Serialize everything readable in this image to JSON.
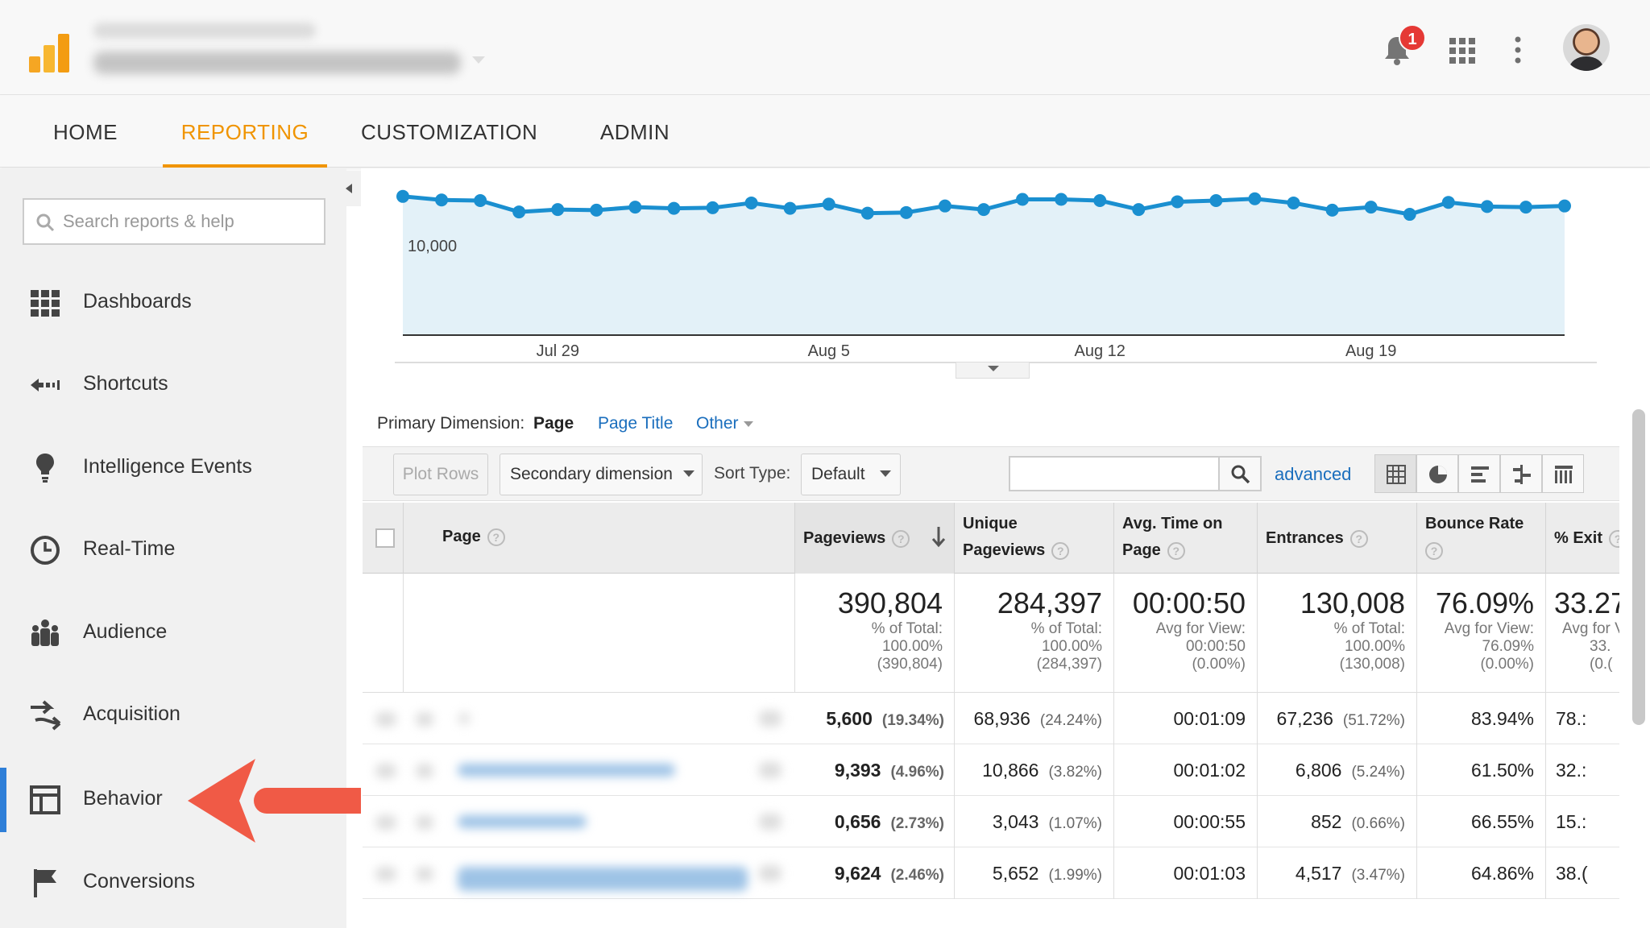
{
  "header": {
    "notifications_count": "1",
    "icons": [
      "notification-bell-icon",
      "apps-grid-icon",
      "more-vert-icon"
    ]
  },
  "nav": {
    "tabs": [
      {
        "label": "HOME",
        "active": false
      },
      {
        "label": "REPORTING",
        "active": true
      },
      {
        "label": "CUSTOMIZATION",
        "active": false
      },
      {
        "label": "ADMIN",
        "active": false
      }
    ],
    "accent_color": "#f09400"
  },
  "sidebar": {
    "search_placeholder": "Search reports & help",
    "items": [
      {
        "label": "Dashboards",
        "icon": "dashboards-icon"
      },
      {
        "label": "Shortcuts",
        "icon": "shortcuts-icon"
      },
      {
        "label": "Intelligence Events",
        "icon": "lightbulb-icon"
      },
      {
        "label": "Real-Time",
        "icon": "clock-icon"
      },
      {
        "label": "Audience",
        "icon": "people-icon"
      },
      {
        "label": "Acquisition",
        "icon": "acquisition-arrows-icon"
      },
      {
        "label": "Behavior",
        "icon": "behavior-layout-icon",
        "active": true
      },
      {
        "label": "Conversions",
        "icon": "flag-icon"
      }
    ],
    "active_color": "#2f7fd8",
    "arrow_color": "#f05a46"
  },
  "chart_data": {
    "type": "area",
    "ytick_label": "10,000",
    "xtick_labels": [
      "Jul 29",
      "Aug 5",
      "Aug 12",
      "Aug 19"
    ],
    "series_color": "#1a8fd0",
    "fill_color": "#e3f1f8",
    "values": [
      12750,
      12450,
      12400,
      11450,
      11650,
      11600,
      11850,
      11750,
      11800,
      12200,
      11750,
      12100,
      11350,
      11400,
      11950,
      11650,
      12500,
      12500,
      12400,
      11650,
      12300,
      12400,
      12550,
      12200,
      11600,
      11850,
      11250,
      12250,
      11900,
      11850,
      11950
    ]
  },
  "primary_dimension": {
    "label": "Primary Dimension:",
    "options": [
      "Page",
      "Page Title",
      "Other"
    ]
  },
  "toolbar": {
    "plot_rows": "Plot Rows",
    "secondary_dimension": "Secondary dimension",
    "sort_type_label": "Sort Type:",
    "sort_type_value": "Default",
    "advanced": "advanced"
  },
  "table": {
    "headers": {
      "page": "Page",
      "pageviews": "Pageviews",
      "unique1": "Unique",
      "unique2": "Pageviews",
      "avgtime1": "Avg. Time on",
      "avgtime2": "Page",
      "entrances": "Entrances",
      "bounce": "Bounce Rate",
      "exit": "% Exit"
    },
    "totals": {
      "pageviews": {
        "value": "390,804",
        "l1": "% of Total:",
        "l2": "100.00%",
        "l3": "(390,804)"
      },
      "unique": {
        "value": "284,397",
        "l1": "% of Total:",
        "l2": "100.00%",
        "l3": "(284,397)"
      },
      "avgtime": {
        "value": "00:00:50",
        "l1": "Avg for View:",
        "l2": "00:00:50",
        "l3": "(0.00%)"
      },
      "entrances": {
        "value": "130,008",
        "l1": "% of Total:",
        "l2": "100.00%",
        "l3": "(130,008)"
      },
      "bounce": {
        "value": "76.09%",
        "l1": "Avg for View:",
        "l2": "76.09%",
        "l3": "(0.00%)"
      },
      "exit": {
        "value": "33.27",
        "l1": "Avg for V",
        "l2": "33.",
        "l3": "(0.("
      }
    },
    "rows": [
      {
        "pageviews": "5,600",
        "pv_pct": "(19.34%)",
        "unique": "68,936",
        "u_pct": "(24.24%)",
        "avgtime": "00:01:09",
        "entrances": "67,236",
        "e_pct": "(51.72%)",
        "bounce": "83.94%",
        "exit": "78.:"
      },
      {
        "pageviews": "9,393",
        "pv_pct": "(4.96%)",
        "unique": "10,866",
        "u_pct": "(3.82%)",
        "avgtime": "00:01:02",
        "entrances": "6,806",
        "e_pct": "(5.24%)",
        "bounce": "61.50%",
        "exit": "32.:"
      },
      {
        "pageviews": "0,656",
        "pv_pct": "(2.73%)",
        "unique": "3,043",
        "u_pct": "(1.07%)",
        "avgtime": "00:00:55",
        "entrances": "852",
        "e_pct": "(0.66%)",
        "bounce": "66.55%",
        "exit": "15.:"
      },
      {
        "pageviews": "9,624",
        "pv_pct": "(2.46%)",
        "unique": "5,652",
        "u_pct": "(1.99%)",
        "avgtime": "00:01:03",
        "entrances": "4,517",
        "e_pct": "(3.47%)",
        "bounce": "64.86%",
        "exit": "38.("
      }
    ]
  }
}
